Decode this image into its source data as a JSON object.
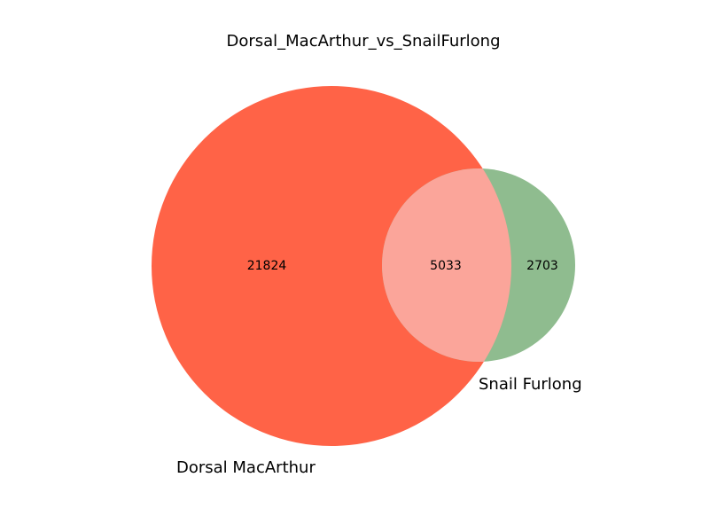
{
  "chart_data": {
    "type": "venn",
    "title": "Dorsal_MacArthur_vs_SnailFurlong",
    "sets": [
      {
        "name": "Dorsal MacArthur",
        "color": "#ff6347"
      },
      {
        "name": "Snail Furlong",
        "color": "#8fbc8f"
      }
    ],
    "intersection_color": "#fba59a",
    "regions": {
      "only_a": 21824,
      "a_and_b": 5033,
      "only_b": 2703
    }
  }
}
